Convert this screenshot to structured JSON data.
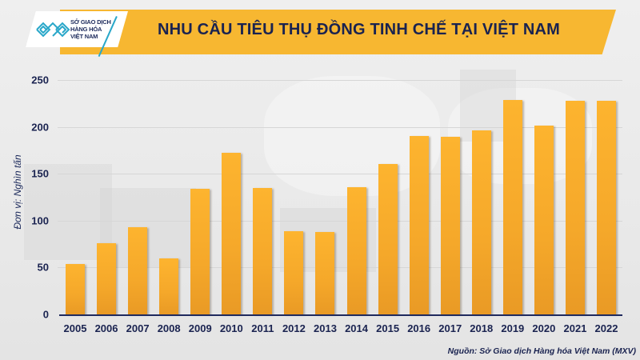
{
  "header": {
    "logo_lines": [
      "SỞ GIAO DỊCH",
      "HÀNG HÓA",
      "VIỆT NAM"
    ],
    "title": "NHU CẦU TIÊU THỤ ĐỒNG TINH CHẾ TẠI VIỆT NAM"
  },
  "colors": {
    "banner": "#f7b731",
    "bar": "#fdb42f",
    "text": "#1a2350",
    "logo_accent": "#29a7c9"
  },
  "source": "Nguồn: Sở Giao dịch Hàng hóa Việt Nam (MXV)",
  "chart_data": {
    "type": "bar",
    "title": "NHU CẦU TIÊU THỤ ĐỒNG TINH CHẾ TẠI VIỆT NAM",
    "xlabel": "",
    "ylabel": "Đơn vị: Nghìn tấn",
    "ylim": [
      0,
      250
    ],
    "yticks": [
      "0",
      "50",
      "100",
      "150",
      "200",
      "250"
    ],
    "grid": true,
    "legend": null,
    "categories": [
      "2005",
      "2006",
      "2007",
      "2008",
      "2009",
      "2010",
      "2011",
      "2012",
      "2013",
      "2014",
      "2015",
      "2016",
      "2017",
      "2018",
      "2019",
      "2020",
      "2021",
      "2022"
    ],
    "values": [
      54,
      76,
      93,
      60,
      134,
      172,
      135,
      89,
      88,
      136,
      160,
      190,
      189,
      196,
      229,
      201,
      228,
      228
    ],
    "source": "Nguồn: Sở Giao dịch Hàng hóa Việt Nam (MXV)"
  }
}
